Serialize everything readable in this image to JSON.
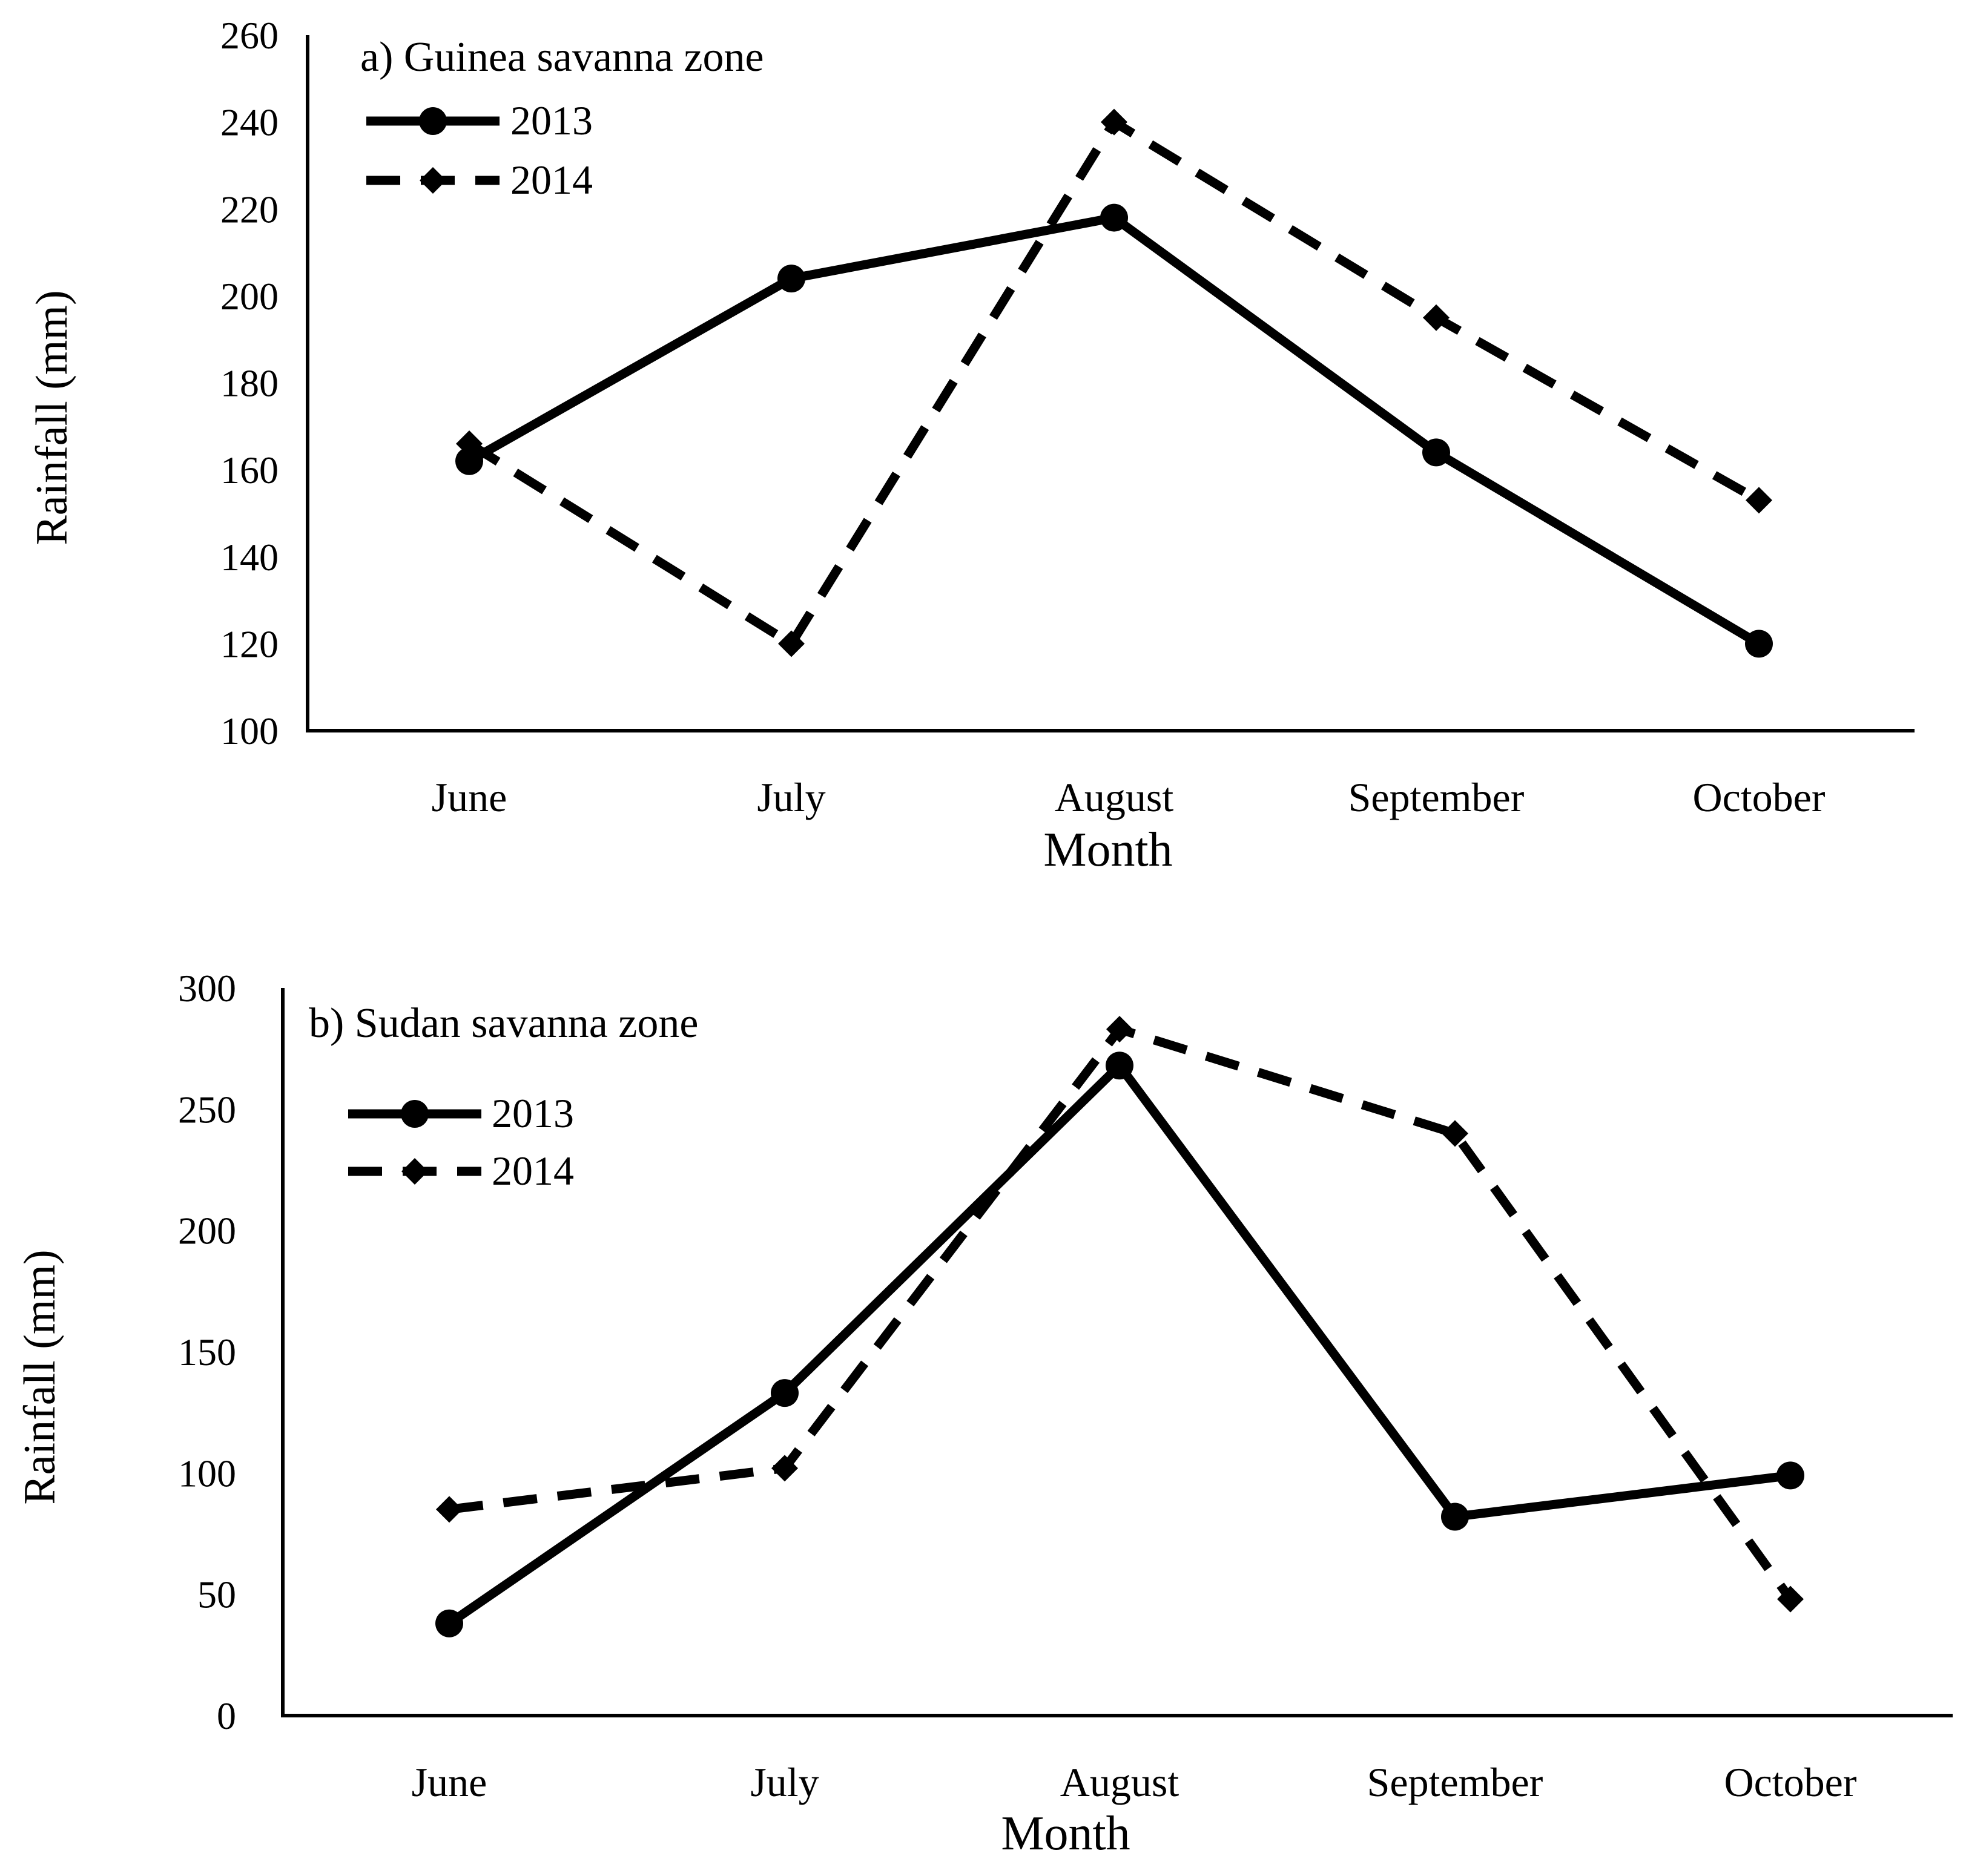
{
  "chart_data": [
    {
      "type": "line",
      "title": "a) Guinea savanna zone",
      "xlabel": "Month",
      "ylabel": "Rainfall (mm)",
      "categories": [
        "June",
        "July",
        "August",
        "September",
        "October"
      ],
      "ylim": [
        100,
        260
      ],
      "yticks": [
        100,
        120,
        140,
        160,
        180,
        200,
        220,
        240,
        260
      ],
      "legend_position": "top-left",
      "series": [
        {
          "name": "2013",
          "style": "solid",
          "marker": "circle",
          "values": [
            162,
            204,
            218,
            164,
            120
          ]
        },
        {
          "name": "2014",
          "style": "dashed",
          "marker": "diamond",
          "values": [
            166,
            120,
            240,
            195,
            153
          ]
        }
      ]
    },
    {
      "type": "line",
      "title": "b) Sudan savanna zone",
      "xlabel": "Month",
      "ylabel": "Rainfall (mm)",
      "categories": [
        "June",
        "July",
        "August",
        "September",
        "October"
      ],
      "ylim": [
        0,
        300
      ],
      "yticks": [
        0,
        50,
        100,
        150,
        200,
        250,
        300
      ],
      "legend_position": "top-left",
      "series": [
        {
          "name": "2013",
          "style": "solid",
          "marker": "circle",
          "values": [
            38,
            133,
            268,
            82,
            99
          ]
        },
        {
          "name": "2014",
          "style": "dashed",
          "marker": "diamond",
          "values": [
            85,
            102,
            283,
            240,
            48
          ]
        }
      ]
    }
  ],
  "colors": {
    "line": "#000000",
    "background": "#ffffff"
  }
}
